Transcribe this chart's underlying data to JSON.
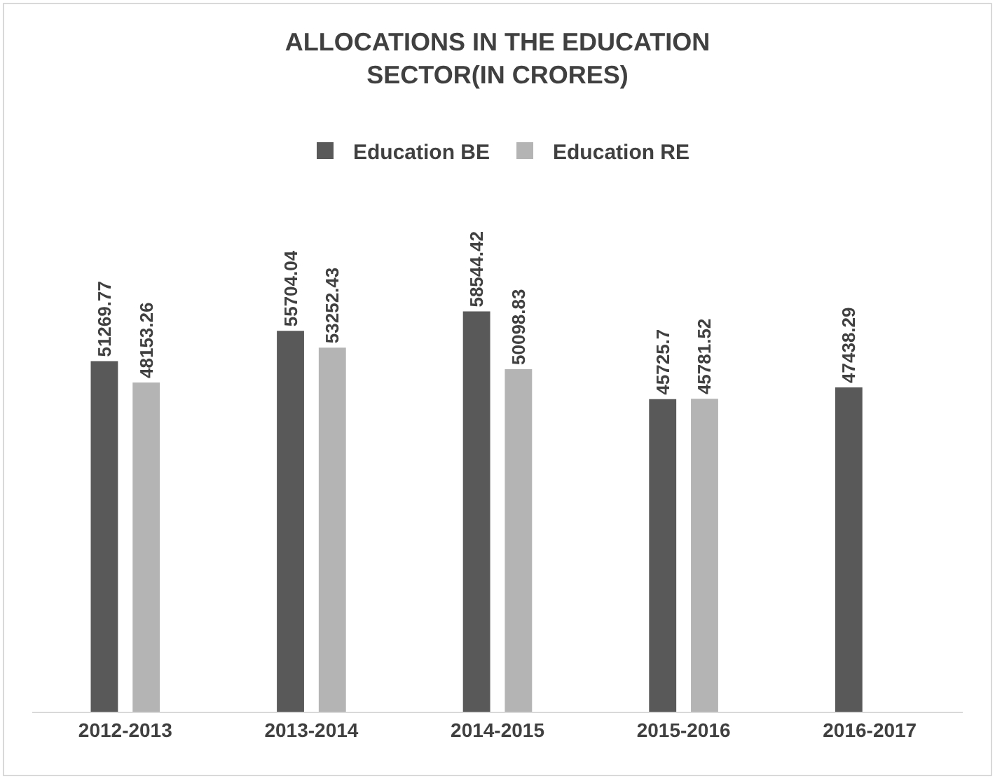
{
  "chart_data": {
    "type": "bar",
    "title": "ALLOCATIONS IN THE EDUCATION SECTOR(IN CRORES)",
    "categories": [
      "2012-2013",
      "2013-2014",
      "2014-2015",
      "2015-2016",
      "2016-2017"
    ],
    "series": [
      {
        "name": "Education BE",
        "color": "#595959",
        "values": [
          51269.77,
          55704.04,
          58544.42,
          45725.7,
          47438.29
        ]
      },
      {
        "name": "Education RE",
        "color": "#b4b4b4",
        "values": [
          48153.26,
          53252.43,
          50098.83,
          45781.52,
          null
        ]
      }
    ],
    "data_labels": true,
    "legend": "top",
    "grid": false
  }
}
